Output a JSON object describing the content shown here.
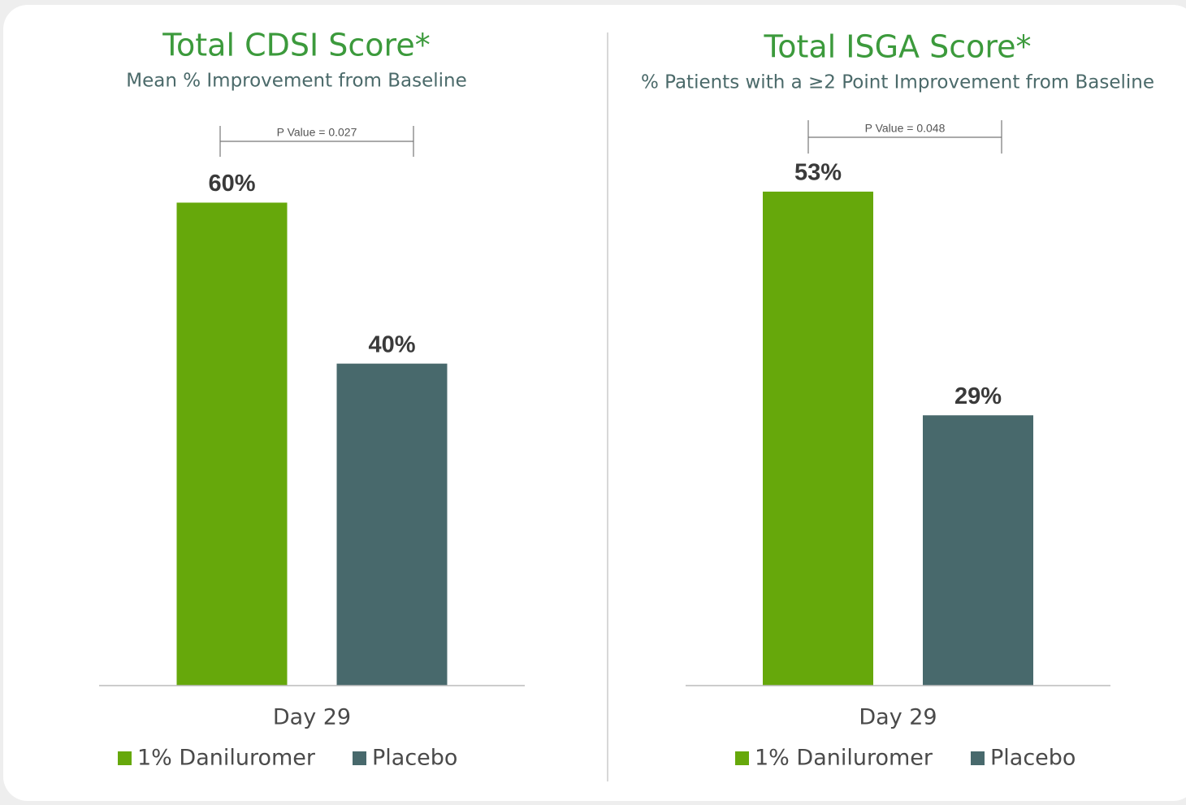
{
  "chart_data": [
    {
      "type": "bar",
      "title": "Total CDSI Score*",
      "subtitle": "Mean % Improvement from Baseline",
      "annotation": "P Value = 0.027",
      "categories": [
        "Day 29"
      ],
      "series": [
        {
          "name": "1% Daniluromer",
          "color": "#66a80b",
          "values": [
            60
          ],
          "value_labels": [
            "60%"
          ]
        },
        {
          "name": "Placebo",
          "color": "#48696c",
          "values": [
            40
          ],
          "value_labels": [
            "40%"
          ]
        }
      ],
      "ylim": [
        0,
        66
      ]
    },
    {
      "type": "bar",
      "title": "Total ISGA Score*",
      "subtitle": "% Patients with a ≥2 Point Improvement from Baseline",
      "annotation": "P Value = 0.048",
      "categories": [
        "Day 29"
      ],
      "series": [
        {
          "name": "1% Daniluromer",
          "color": "#66a80b",
          "values": [
            53
          ],
          "value_labels": [
            "53%"
          ]
        },
        {
          "name": "Placebo",
          "color": "#48696c",
          "values": [
            29
          ],
          "value_labels": [
            "29%"
          ]
        }
      ],
      "ylim": [
        0,
        57
      ]
    }
  ]
}
